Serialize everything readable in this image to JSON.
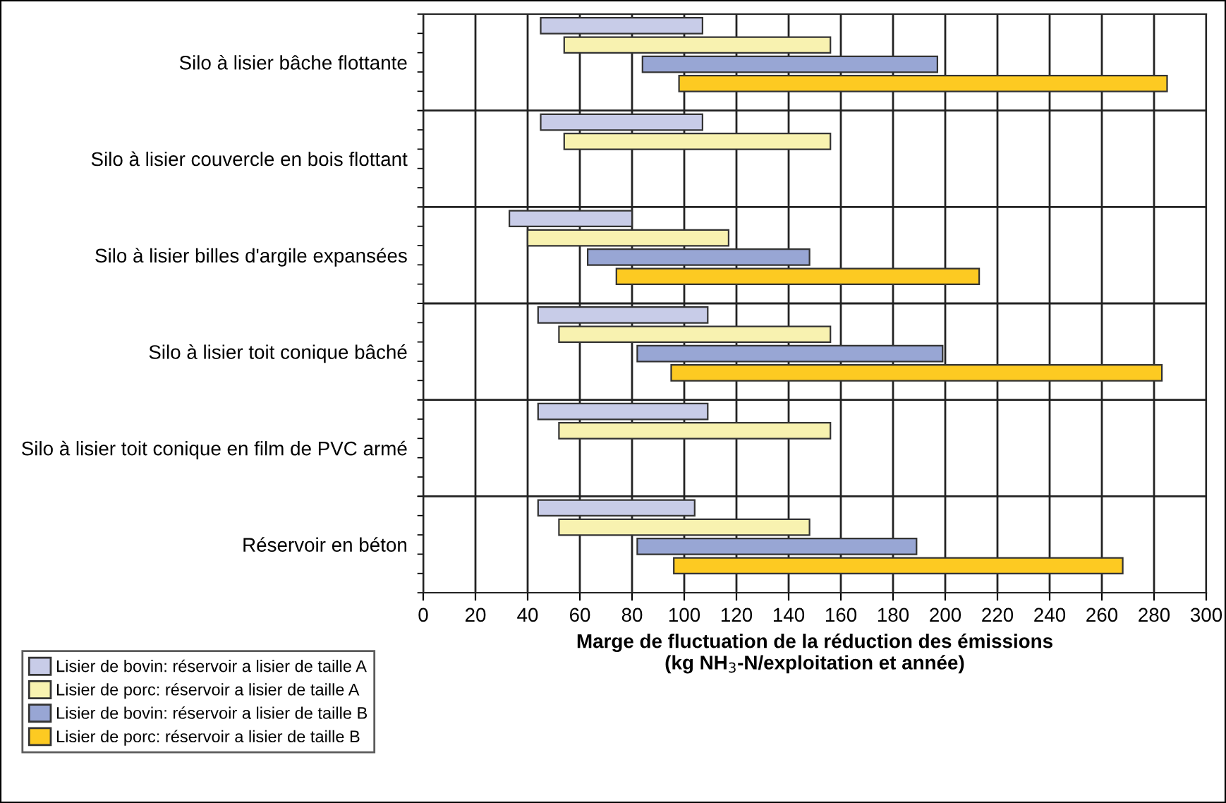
{
  "chart_data": {
    "type": "bar",
    "orientation": "horizontal",
    "xlabel": "Marge de fluctuation de la réduction des émissions\n(kg NH$_{3}$-N/exploitation et année)",
    "categories": [
      "Silo à lisier bâche flottante",
      "Silo à lisier couvercle en bois flottant",
      "Silo à lisier billes d'argile expansées",
      "Silo à lisier toit conique bâché",
      "Silo à lisier toit conique en film de PVC armé",
      "Réservoir en béton"
    ],
    "series": [
      {
        "name": "Lisier de bovin: réservoir a lisier de taille A",
        "color": "#c8cce8",
        "base": [
          45,
          45,
          33,
          44,
          44,
          44
        ],
        "values": [
          62,
          62,
          47,
          65,
          65,
          60
        ]
      },
      {
        "name": "Lisier de porc: réservoir a lisier de taille A",
        "color": "#f8f2b0",
        "base": [
          54,
          54,
          40,
          52,
          52,
          52
        ],
        "values": [
          102,
          102,
          77,
          104,
          104,
          96
        ]
      },
      {
        "name": "Lisier de bovin: réservoir a lisier de taille B",
        "color": "#98a6d4",
        "base": [
          84,
          null,
          63,
          82,
          null,
          82
        ],
        "values": [
          113,
          null,
          85,
          117,
          null,
          107
        ]
      },
      {
        "name": "Lisier de porc: réservoir a lisier de taille B",
        "color": "#fdca22",
        "base": [
          98,
          null,
          74,
          95,
          null,
          96
        ],
        "values": [
          187,
          null,
          139,
          188,
          null,
          172
        ]
      }
    ],
    "xlim": [
      0,
      300
    ],
    "xticks": [
      0,
      20,
      40,
      60,
      80,
      100,
      120,
      140,
      160,
      180,
      200,
      220,
      240,
      260,
      280,
      300
    ],
    "grid": true,
    "legend": "bottom left"
  }
}
